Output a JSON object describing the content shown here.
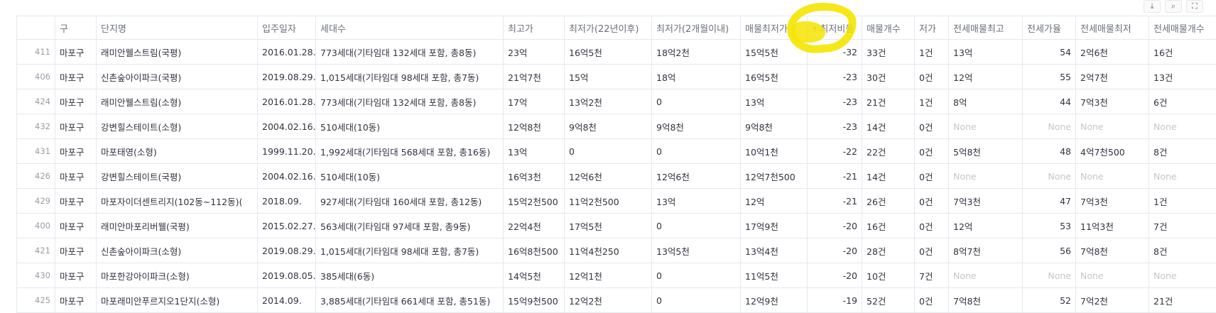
{
  "toolbar": {
    "icons": [
      "download-icon",
      "search-icon",
      "fullscreen-icon"
    ]
  },
  "annotation": {
    "color": "#f5e400"
  },
  "table": {
    "columns": [
      "",
      "구",
      "단지명",
      "입주일자",
      "세대수",
      "최고가",
      "최저가(22년이후)",
      "최저가(2개월이내)",
      "매물최저가",
      "최저비율",
      "매물개수",
      "저가",
      "전세매물최고",
      "전세가율",
      "전세매물최저",
      "전세매물개수"
    ],
    "sort_indicator": "↑",
    "rows": [
      [
        "411",
        "마포구",
        "래미안웰스트림(국평)",
        "2016.01.28.",
        "773세대(기타임대 132세대 포함, 총8동)",
        "23억",
        "16억5천",
        "18억2천",
        "15억5천",
        "-32",
        "33건",
        "1건",
        "13억",
        "54",
        "2억6천",
        "16건"
      ],
      [
        "406",
        "마포구",
        "신촌숲아이파크(국평)",
        "2019.08.29.",
        "1,015세대(기타임대 98세대 포함, 총7동)",
        "21억7천",
        "15억",
        "18억",
        "16억5천",
        "-23",
        "30건",
        "0건",
        "12억",
        "55",
        "2억7천",
        "13건"
      ],
      [
        "424",
        "마포구",
        "래미안웰스트림(소형)",
        "2016.01.28.",
        "773세대(기타임대 132세대 포함, 총8동)",
        "17억",
        "13억2천",
        "0",
        "13억",
        "-23",
        "21건",
        "1건",
        "8억",
        "44",
        "7억3천",
        "6건"
      ],
      [
        "432",
        "마포구",
        "강변힐스테이트(소형)",
        "2004.02.16.",
        "510세대(10동)",
        "12억8천",
        "9억8천",
        "9억8천",
        "9억8천",
        "-23",
        "14건",
        "0건",
        "None",
        "None",
        "None",
        "None"
      ],
      [
        "431",
        "마포구",
        "마포태영(소형)",
        "1999.11.20.",
        "1,992세대(기타임대 568세대 포함, 총16동)",
        "13억",
        "0",
        "0",
        "10억1천",
        "-22",
        "22건",
        "0건",
        "5억8천",
        "48",
        "4억7천500",
        "8건"
      ],
      [
        "426",
        "마포구",
        "강변힐스테이트(국평)",
        "2004.02.16.",
        "510세대(10동)",
        "16억3천",
        "12억6천",
        "12억6천",
        "12억7천500",
        "-21",
        "14건",
        "0건",
        "None",
        "None",
        "None",
        "None"
      ],
      [
        "429",
        "마포구",
        "마포자이더센트리지(102동~112동)(",
        "2018.09.",
        "927세대(기타임대 160세대 포함, 총12동)",
        "15억2천500",
        "11억2천500",
        "13억",
        "12억",
        "-21",
        "26건",
        "0건",
        "7억3천",
        "47",
        "7억3천",
        "1건"
      ],
      [
        "400",
        "마포구",
        "래미안마포리버웰(국평)",
        "2015.02.27.",
        "563세대(기타임대 97세대 포함, 총9동)",
        "22억4천",
        "17억5천",
        "0",
        "17억9천",
        "-20",
        "16건",
        "0건",
        "12억",
        "53",
        "11억3천",
        "7건"
      ],
      [
        "421",
        "마포구",
        "신촌숲아이파크(소형)",
        "2019.08.29.",
        "1,015세대(기타임대 98세대 포함, 총7동)",
        "16억8천500",
        "11억4천250",
        "13억5천",
        "13억4천",
        "-20",
        "28건",
        "0건",
        "8억7천",
        "56",
        "7억8천",
        "8건"
      ],
      [
        "430",
        "마포구",
        "마포한강아이파크(소형)",
        "2019.08.05.",
        "385세대(6동)",
        "14억5천",
        "12억1천",
        "0",
        "11억5천",
        "-20",
        "10건",
        "7건",
        "None",
        "None",
        "None",
        "None"
      ],
      [
        "425",
        "마포구",
        "마포래미안푸르지오1단지(소형)",
        "2014.09.",
        "3,885세대(기타임대 661세대 포함, 총51동)",
        "15억9천500",
        "12억2천",
        "0",
        "12억9천",
        "-19",
        "52건",
        "0건",
        "7억8천",
        "52",
        "7억2천",
        "21건"
      ]
    ]
  }
}
